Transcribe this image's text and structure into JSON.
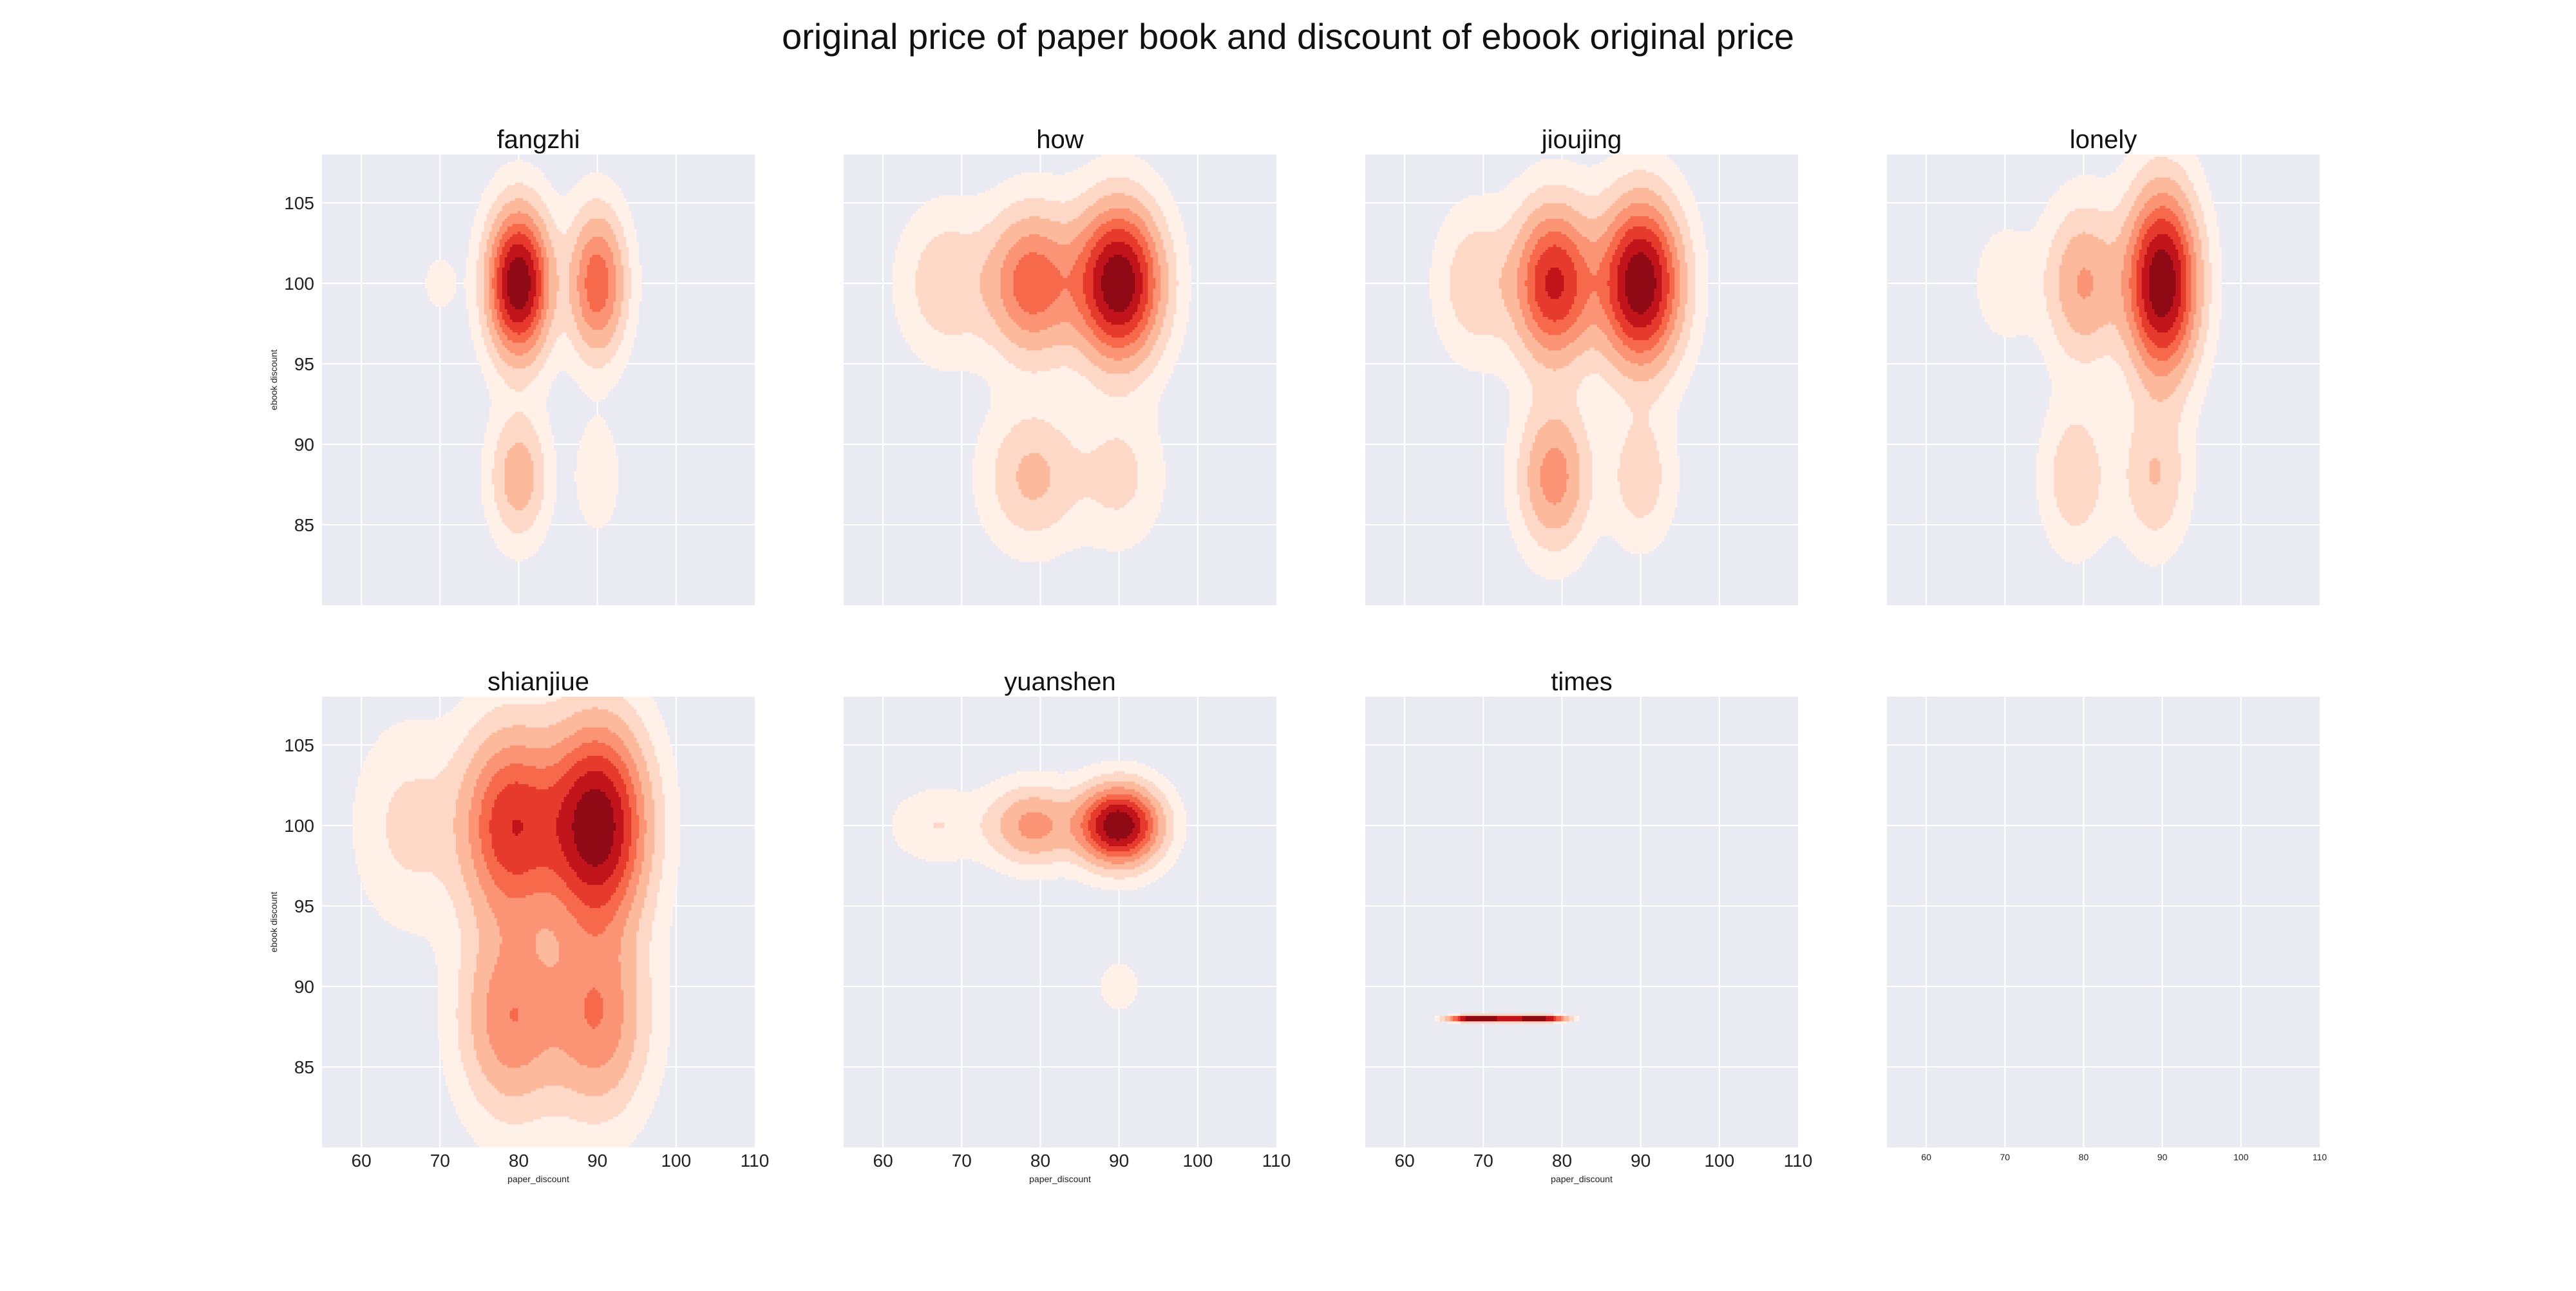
{
  "figure": {
    "title": "original price of paper book and discount of ebook original price"
  },
  "chart_data": [
    {
      "type": "kde",
      "title": "fangzhi",
      "xlabel": "",
      "ylabel": "ebook discount",
      "xlim": [
        55,
        110
      ],
      "ylim": [
        80,
        108
      ],
      "x_ticks": [],
      "y_ticks": [
        85,
        90,
        95,
        100,
        105
      ],
      "grid": true,
      "colormap": "Reds",
      "density_peaks": [
        {
          "x": 80,
          "y": 100,
          "weight": 1.0,
          "sx": 2.6,
          "sy": 3.0
        },
        {
          "x": 90,
          "y": 100,
          "weight": 0.55,
          "sx": 2.4,
          "sy": 3.0
        },
        {
          "x": 80,
          "y": 88,
          "weight": 0.3,
          "sx": 2.4,
          "sy": 2.6
        },
        {
          "x": 90,
          "y": 88,
          "weight": 0.12,
          "sx": 1.8,
          "sy": 2.2
        },
        {
          "x": 70,
          "y": 100,
          "weight": 0.08,
          "sx": 1.5,
          "sy": 1.2
        }
      ]
    },
    {
      "type": "kde",
      "title": "how",
      "xlabel": "",
      "ylabel": "",
      "xlim": [
        55,
        110
      ],
      "ylim": [
        80,
        108
      ],
      "x_ticks": [],
      "y_ticks": [],
      "grid": true,
      "colormap": "Reds",
      "density_peaks": [
        {
          "x": 90,
          "y": 100,
          "weight": 1.0,
          "sx": 3.6,
          "sy": 3.2
        },
        {
          "x": 79,
          "y": 100,
          "weight": 0.55,
          "sx": 3.8,
          "sy": 3.0
        },
        {
          "x": 68,
          "y": 100,
          "weight": 0.2,
          "sx": 3.8,
          "sy": 3.0
        },
        {
          "x": 79,
          "y": 88,
          "weight": 0.25,
          "sx": 4.0,
          "sy": 2.8
        },
        {
          "x": 90,
          "y": 88,
          "weight": 0.15,
          "sx": 3.6,
          "sy": 2.8
        }
      ]
    },
    {
      "type": "kde",
      "title": "jioujing",
      "xlabel": "",
      "ylabel": "",
      "xlim": [
        55,
        110
      ],
      "ylim": [
        80,
        108
      ],
      "x_ticks": [],
      "y_ticks": [],
      "grid": true,
      "colormap": "Reds",
      "density_peaks": [
        {
          "x": 90,
          "y": 100,
          "weight": 1.0,
          "sx": 3.4,
          "sy": 3.4
        },
        {
          "x": 79,
          "y": 100,
          "weight": 0.75,
          "sx": 3.4,
          "sy": 3.2
        },
        {
          "x": 69,
          "y": 100,
          "weight": 0.2,
          "sx": 3.2,
          "sy": 3.0
        },
        {
          "x": 79,
          "y": 88,
          "weight": 0.4,
          "sx": 3.0,
          "sy": 3.0
        },
        {
          "x": 90,
          "y": 88,
          "weight": 0.18,
          "sx": 2.8,
          "sy": 2.8
        }
      ]
    },
    {
      "type": "kde",
      "title": "lonely",
      "xlabel": "",
      "ylabel": "",
      "xlim": [
        55,
        110
      ],
      "ylim": [
        80,
        108
      ],
      "x_ticks": [],
      "y_ticks": [],
      "grid": true,
      "colormap": "Reds",
      "density_peaks": [
        {
          "x": 90,
          "y": 100,
          "weight": 1.0,
          "sx": 3.0,
          "sy": 3.8
        },
        {
          "x": 80,
          "y": 100,
          "weight": 0.35,
          "sx": 3.2,
          "sy": 3.2
        },
        {
          "x": 70,
          "y": 100,
          "weight": 0.1,
          "sx": 2.6,
          "sy": 2.4
        },
        {
          "x": 79,
          "y": 88,
          "weight": 0.2,
          "sx": 2.8,
          "sy": 3.0
        },
        {
          "x": 89,
          "y": 88,
          "weight": 0.22,
          "sx": 2.8,
          "sy": 3.0
        }
      ]
    },
    {
      "type": "kde",
      "title": "shianjiue",
      "xlabel": "paper_discount",
      "ylabel": "ebook discount",
      "xlim": [
        55,
        110
      ],
      "ylim": [
        80,
        108
      ],
      "x_ticks": [
        60,
        70,
        80,
        90,
        100,
        110
      ],
      "y_ticks": [
        85,
        90,
        95,
        100,
        105
      ],
      "grid": true,
      "colormap": "Reds",
      "density_peaks": [
        {
          "x": 90,
          "y": 100,
          "weight": 1.0,
          "sx": 4.2,
          "sy": 4.2
        },
        {
          "x": 79,
          "y": 100,
          "weight": 0.7,
          "sx": 4.2,
          "sy": 4.0
        },
        {
          "x": 66,
          "y": 100,
          "weight": 0.15,
          "sx": 4.4,
          "sy": 4.0
        },
        {
          "x": 79,
          "y": 88,
          "weight": 0.45,
          "sx": 4.2,
          "sy": 4.0
        },
        {
          "x": 90,
          "y": 88,
          "weight": 0.45,
          "sx": 4.2,
          "sy": 4.0
        }
      ]
    },
    {
      "type": "kde",
      "title": "yuanshen",
      "xlabel": "paper_discount",
      "ylabel": "",
      "xlim": [
        55,
        110
      ],
      "ylim": [
        80,
        108
      ],
      "x_ticks": [
        60,
        70,
        80,
        90,
        100,
        110
      ],
      "y_ticks": [],
      "grid": true,
      "colormap": "Reds",
      "density_peaks": [
        {
          "x": 90,
          "y": 100,
          "weight": 1.0,
          "sx": 3.4,
          "sy": 1.6
        },
        {
          "x": 79,
          "y": 100,
          "weight": 0.38,
          "sx": 3.6,
          "sy": 1.6
        },
        {
          "x": 67,
          "y": 100,
          "weight": 0.12,
          "sx": 4.0,
          "sy": 1.5
        },
        {
          "x": 90,
          "y": 90,
          "weight": 0.08,
          "sx": 2.0,
          "sy": 1.2
        }
      ]
    },
    {
      "type": "kde",
      "title": "times",
      "xlabel": "paper_discount",
      "ylabel": "",
      "xlim": [
        55,
        110
      ],
      "ylim": [
        80,
        108
      ],
      "x_ticks": [
        60,
        70,
        80,
        90,
        100,
        110
      ],
      "y_ticks": [],
      "grid": true,
      "colormap": "Reds",
      "density_peaks": [
        {
          "x": 68,
          "y": 88,
          "weight": 1.0,
          "sx": 1.8,
          "sy": 0.12
        },
        {
          "x": 71,
          "y": 88,
          "weight": 1.0,
          "sx": 1.8,
          "sy": 0.12
        },
        {
          "x": 75,
          "y": 88,
          "weight": 0.9,
          "sx": 1.8,
          "sy": 0.12
        },
        {
          "x": 78,
          "y": 88,
          "weight": 1.0,
          "sx": 1.8,
          "sy": 0.12
        }
      ]
    },
    {
      "type": "kde",
      "title": "",
      "xlabel": "",
      "ylabel": "",
      "xlim": [
        55,
        110
      ],
      "ylim": [
        80,
        108
      ],
      "x_ticks": [
        60,
        70,
        80,
        90,
        100,
        110
      ],
      "x_ticks_small": true,
      "y_ticks": [],
      "grid": true,
      "colormap": "Reds",
      "density_peaks": []
    }
  ]
}
